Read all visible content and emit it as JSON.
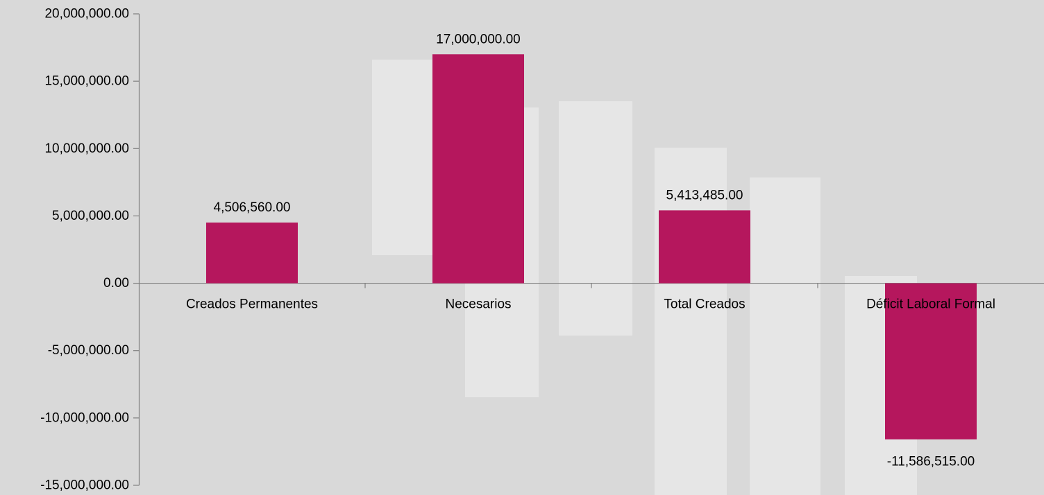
{
  "chart_data": {
    "type": "bar",
    "categories": [
      "Creados Permanentes",
      "Necesarios",
      "Total Creados",
      "Déficit Laboral Formal"
    ],
    "values": [
      4506560,
      17000000,
      5413485,
      -11586515
    ],
    "data_labels": [
      "4,506,560.00",
      "17,000,000.00",
      "5,413,485.00",
      "-11,586,515.00"
    ],
    "ylim": [
      -15000000,
      20000000
    ],
    "ytick_values": [
      20000000,
      15000000,
      10000000,
      5000000,
      0,
      -5000000,
      -10000000,
      -15000000
    ],
    "ytick_labels": [
      "20,000,000.00",
      "15,000,000.00",
      "10,000,000.00",
      "5,000,000.00",
      "0.00",
      "-5,000,000.00",
      "-10,000,000.00",
      "-15,000,000.00"
    ],
    "grid": false,
    "legend": "none",
    "title": "",
    "xlabel": "",
    "ylabel": "",
    "colors": {
      "bar": "#b5175d",
      "background": "#d9d9d9",
      "axis": "#7f7f7f",
      "decor": "#e7e7e7"
    }
  }
}
